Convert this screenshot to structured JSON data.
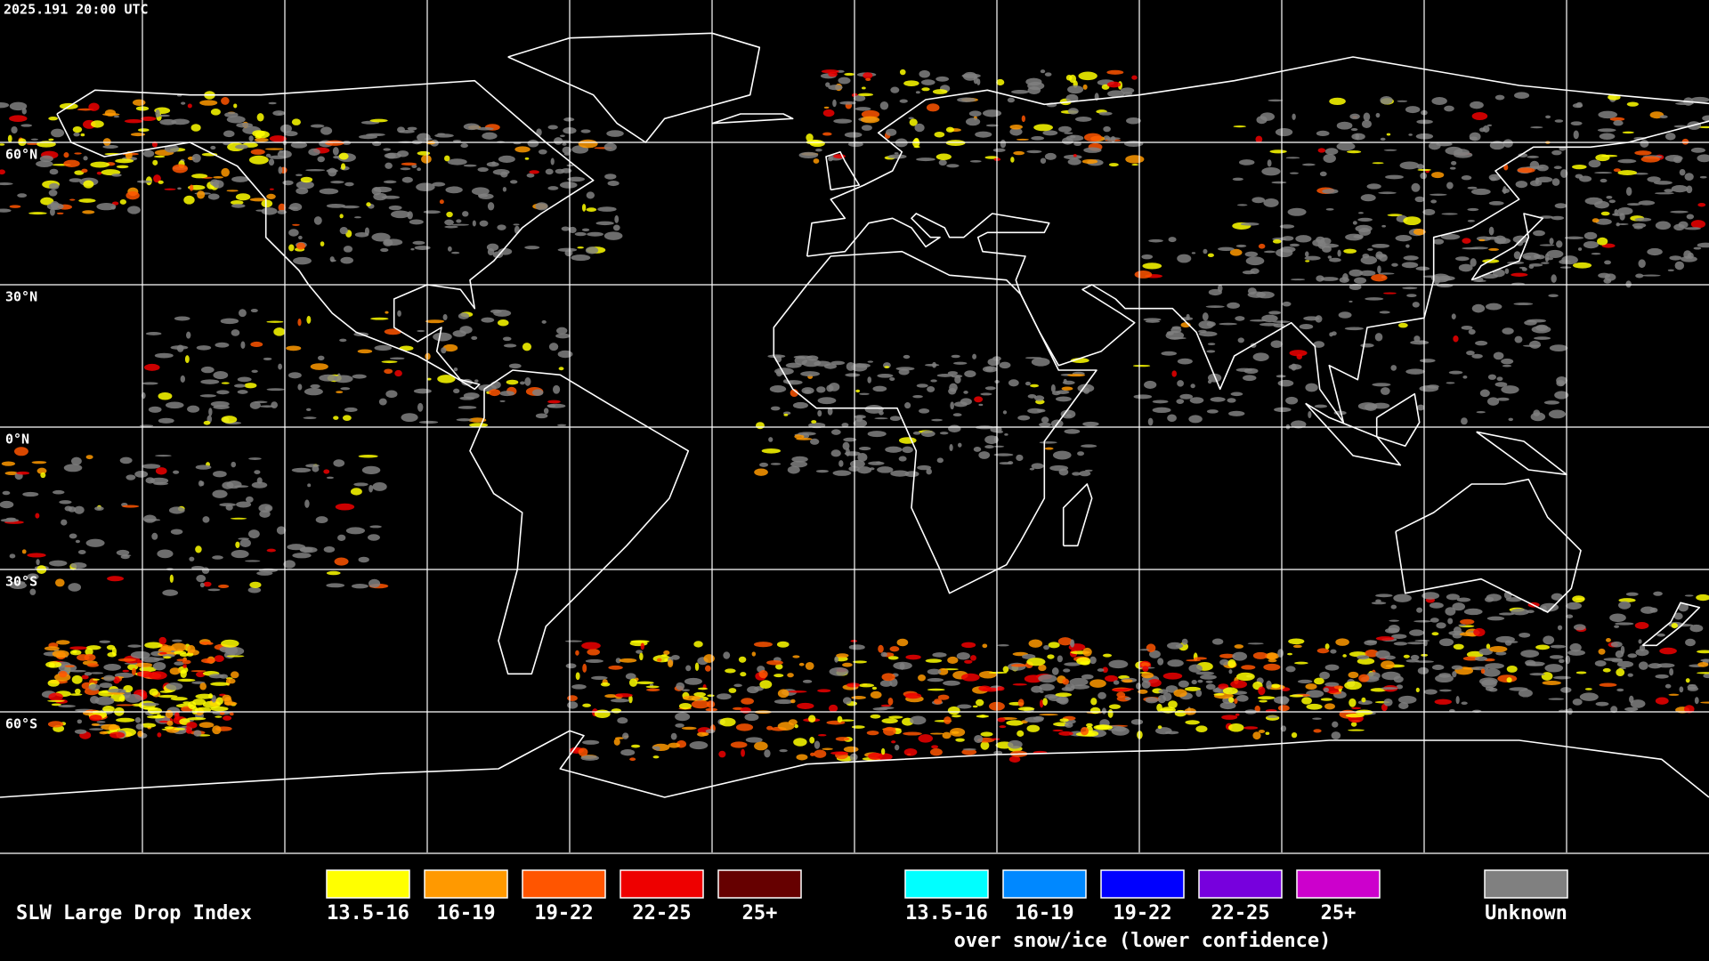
{
  "timestamp": "2025.191 20:00 UTC",
  "lat_labels": [
    "60°N",
    "30°N",
    "0°N",
    "30°S",
    "60°S"
  ],
  "legend": {
    "title": "SLW Large Drop Index",
    "groups": [
      {
        "items": [
          {
            "label": "13.5-16",
            "color": "#ffff00"
          },
          {
            "label": "16-19",
            "color": "#ff9900"
          },
          {
            "label": "19-22",
            "color": "#ff5500"
          },
          {
            "label": "22-25",
            "color": "#ee0000"
          },
          {
            "label": "25+",
            "color": "#660000"
          }
        ]
      },
      {
        "items": [
          {
            "label": "13.5-16",
            "color": "#00ffff"
          },
          {
            "label": "16-19",
            "color": "#0088ff"
          },
          {
            "label": "19-22",
            "color": "#0000ff"
          },
          {
            "label": "22-25",
            "color": "#7700dd"
          },
          {
            "label": "25+",
            "color": "#cc00cc"
          }
        ],
        "caption": "over snow/ice (lower confidence)"
      },
      {
        "items": [
          {
            "label": "Unknown",
            "color": "#808080"
          }
        ]
      }
    ]
  }
}
